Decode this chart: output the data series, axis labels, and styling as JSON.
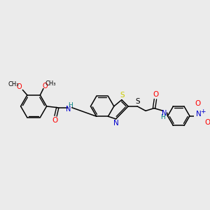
{
  "background_color": "#ebebeb",
  "bond_color": "#000000",
  "colors": {
    "N": "#0000cd",
    "O": "#ff0000",
    "S_yellow": "#cccc00",
    "S_black": "#000000",
    "teal_H": "#008080"
  },
  "figsize": [
    3.0,
    3.0
  ],
  "dpi": 100,
  "xlim": [
    0,
    300
  ],
  "ylim": [
    0,
    300
  ]
}
